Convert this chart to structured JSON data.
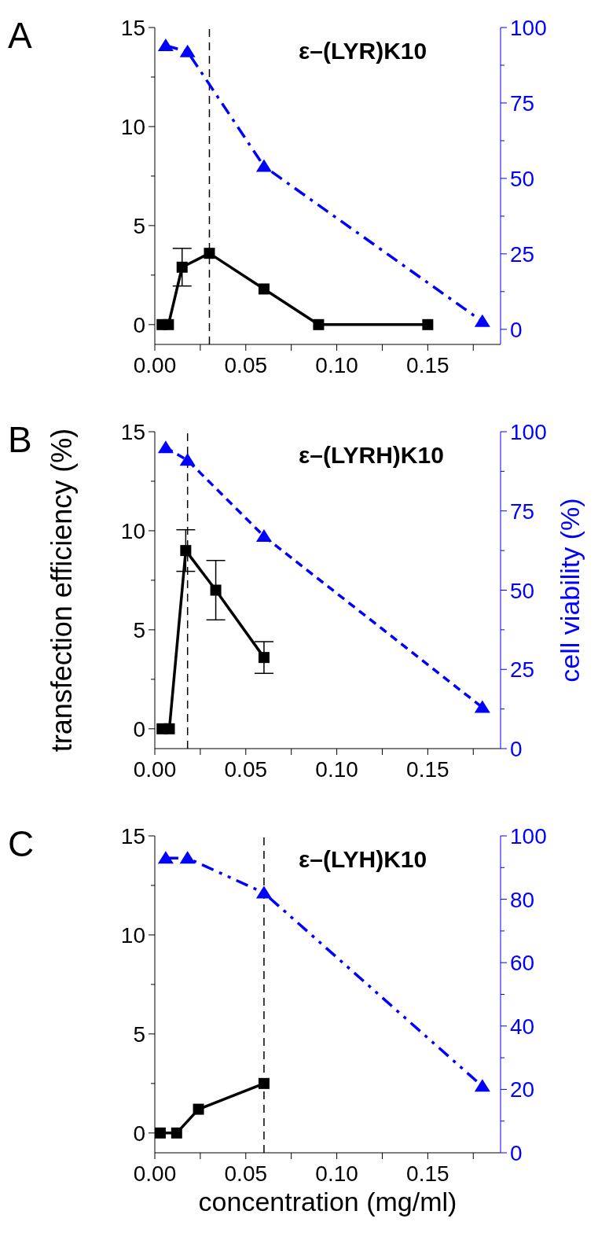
{
  "chart_data": [
    {
      "type": "line",
      "title": "A",
      "annotations": [
        "ε–(LYR)K10"
      ],
      "xlim": [
        0,
        0.19
      ],
      "xticks": [
        "0.00",
        {
          "value": 0.025,
          "label": null
        },
        {
          "value": 0.05,
          "label": "0.05"
        },
        {
          "value": 0.075,
          "label": null
        },
        {
          "value": 0.1,
          "label": "0.10"
        },
        {
          "value": 0.125,
          "label": null
        },
        {
          "value": 0.15,
          "label": "0.15"
        },
        {
          "value": 0.175,
          "label": null
        }
      ],
      "ylim": [
        -1,
        15
      ],
      "yticks": [
        0,
        {
          "value": 2.5,
          "label": null
        },
        5,
        {
          "value": 7.5,
          "label": null
        },
        10,
        {
          "value": 12.5,
          "label": null
        },
        15
      ],
      "y2lim": [
        -5,
        100
      ],
      "y2ticks": [
        0,
        {
          "value": 12.5,
          "label": null
        },
        25,
        {
          "value": 37.5,
          "label": null
        },
        50,
        {
          "value": 62.5,
          "label": null
        },
        75,
        {
          "value": 87.5,
          "label": null
        },
        100
      ],
      "ref_lines": [
        {
          "axis": "x",
          "value": 0.03,
          "color": "#000000",
          "line_style": "dashed"
        }
      ],
      "series": [
        {
          "color": "#000000",
          "marker": "square",
          "line_style": "solid",
          "x": [
            0.004,
            0.0075,
            0.015,
            0.03,
            0.06,
            0.09,
            0.15
          ],
          "values": [
            0,
            0,
            2.9,
            3.6,
            1.8,
            0,
            0
          ],
          "errors": [
            null,
            null,
            0.95,
            null,
            null,
            null,
            null
          ]
        },
        {
          "color": "#0000ff",
          "marker": "triangle",
          "line_style": "dashdot",
          "axis": "y2",
          "x": [
            0.006,
            0.018,
            0.06,
            0.18
          ],
          "values": [
            94,
            92,
            54,
            2.6
          ]
        }
      ]
    },
    {
      "type": "line",
      "title": "B",
      "annotations": [
        "ε–(LYRH)K10"
      ],
      "ylabel": "transfection efficiency (%)",
      "y2label": "cell viability (%)",
      "xlim": [
        0,
        0.19
      ],
      "xticks": [
        "0.00",
        {
          "value": 0.025,
          "label": null
        },
        {
          "value": 0.05,
          "label": "0.05"
        },
        {
          "value": 0.075,
          "label": null
        },
        {
          "value": 0.1,
          "label": "0.10"
        },
        {
          "value": 0.125,
          "label": null
        },
        {
          "value": 0.15,
          "label": "0.15"
        },
        {
          "value": 0.175,
          "label": null
        }
      ],
      "ylim": [
        -1,
        15
      ],
      "yticks": [
        0,
        {
          "value": 2.5,
          "label": null
        },
        5,
        {
          "value": 7.5,
          "label": null
        },
        10,
        {
          "value": 12.5,
          "label": null
        },
        15
      ],
      "y2lim": [
        0,
        100
      ],
      "y2ticks": [
        0,
        {
          "value": 12.5,
          "label": null
        },
        25,
        {
          "value": 37.5,
          "label": null
        },
        50,
        {
          "value": 62.5,
          "label": null
        },
        75,
        {
          "value": 87.5,
          "label": null
        },
        100
      ],
      "ref_lines": [
        {
          "axis": "x",
          "value": 0.018,
          "color": "#000000",
          "line_style": "dashed"
        }
      ],
      "series": [
        {
          "color": "#000000",
          "marker": "square",
          "line_style": "solid",
          "x": [
            0.004,
            0.008,
            0.017,
            0.0335,
            0.06
          ],
          "values": [
            0,
            0,
            9,
            7,
            3.6
          ],
          "errors": [
            null,
            null,
            1.05,
            1.5,
            0.8
          ]
        },
        {
          "color": "#0000ff",
          "marker": "triangle",
          "line_style": "dashed",
          "axis": "y2",
          "x": [
            0.006,
            0.018,
            0.06,
            0.18
          ],
          "values": [
            95,
            91,
            67,
            13
          ]
        }
      ]
    },
    {
      "type": "line",
      "title": "C",
      "annotations": [
        "ε–(LYH)K10"
      ],
      "xlabel": "concentration (mg/ml)",
      "xlim": [
        0,
        0.19
      ],
      "xticks": [
        "0.00",
        {
          "value": 0.025,
          "label": null
        },
        {
          "value": 0.05,
          "label": "0.05"
        },
        {
          "value": 0.075,
          "label": null
        },
        {
          "value": 0.1,
          "label": "0.10"
        },
        {
          "value": 0.125,
          "label": null
        },
        {
          "value": 0.15,
          "label": "0.15"
        },
        {
          "value": 0.175,
          "label": null
        }
      ],
      "ylim": [
        -1,
        15
      ],
      "yticks": [
        0,
        {
          "value": 2.5,
          "label": null
        },
        5,
        {
          "value": 7.5,
          "label": null
        },
        10,
        {
          "value": 12.5,
          "label": null
        },
        15
      ],
      "y2lim": [
        0,
        100
      ],
      "y2ticks": [
        0,
        {
          "value": 10,
          "label": null
        },
        20,
        {
          "value": 30,
          "label": null
        },
        40,
        {
          "value": 50,
          "label": null
        },
        60,
        {
          "value": 70,
          "label": null
        },
        80,
        {
          "value": 90,
          "label": null
        },
        100
      ],
      "ref_lines": [
        {
          "axis": "x",
          "value": 0.06,
          "color": "#000000",
          "line_style": "dashed"
        }
      ],
      "series": [
        {
          "color": "#000000",
          "marker": "square",
          "line_style": "solid",
          "x": [
            0.003,
            0.012,
            0.024,
            0.06
          ],
          "values": [
            0,
            0,
            1.2,
            2.5
          ]
        },
        {
          "color": "#0000ff",
          "marker": "triangle",
          "line_style": "dashdotdot",
          "axis": "y2",
          "x": [
            0.006,
            0.018,
            0.06,
            0.18
          ],
          "values": [
            93,
            93,
            82,
            21
          ]
        }
      ]
    }
  ]
}
